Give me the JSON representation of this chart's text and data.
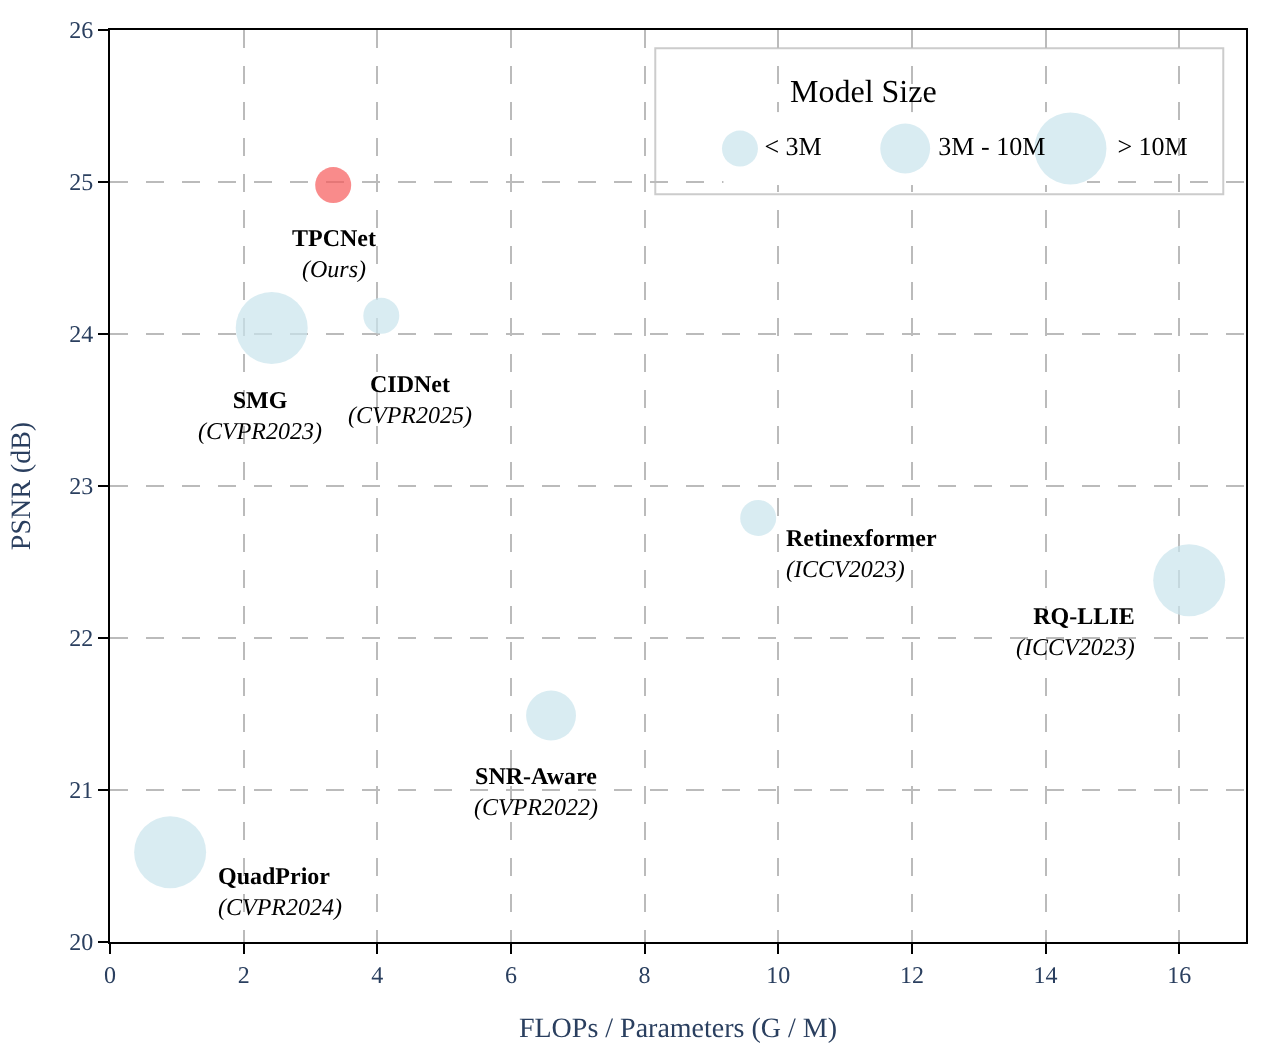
{
  "chart_data": {
    "type": "bubble",
    "xlabel": "FLOPs / Parameters (G / M)",
    "ylabel": "PSNR (dB)",
    "x": [
      3.34,
      2.42,
      4.06,
      9.7,
      16.15,
      6.6,
      0.9
    ],
    "values": [
      24.98,
      24.04,
      24.12,
      22.79,
      22.38,
      21.49,
      20.59
    ],
    "sizes": [
      0.25,
      1,
      0.25,
      0.25,
      1,
      0.48,
      1
    ],
    "colors": [
      "#f75a5a",
      "#c9e4ed",
      "#c9e4ed",
      "#c9e4ed",
      "#c9e4ed",
      "#c9e4ed",
      "#c9e4ed"
    ],
    "annotations": [
      {
        "text": "TPCNet\n(Ours)",
        "x": 3.34,
        "y": 24.98
      },
      {
        "text": "SMG\n(CVPR2023)",
        "x": 2.42,
        "y": 24.04
      },
      {
        "text": "CIDNet\n(CVPR2025)",
        "x": 4.06,
        "y": 24.12
      },
      {
        "text": "Retinexformer\n(ICCV2023)",
        "x": 9.7,
        "y": 22.79
      },
      {
        "text": "RQ-LLIE\n(ICCV2023)",
        "x": 16.15,
        "y": 22.38
      },
      {
        "text": "SNR-Aware\n(CVPR2022)",
        "x": 6.6,
        "y": 21.49
      },
      {
        "text": "QuadPrior\n(CVPR2024)",
        "x": 0.9,
        "y": 20.59
      }
    ],
    "legend_title": "Model Size",
    "size_legend": [
      {
        "value": 0.25,
        "label": "< 3M"
      },
      {
        "value": 0.48,
        "label": "3M - 10M"
      },
      {
        "value": 1,
        "label": "> 10M"
      }
    ],
    "xlim": [
      0,
      17
    ],
    "xticks": [
      0,
      2,
      4,
      6,
      8,
      10,
      12,
      14,
      16
    ],
    "ylim": [
      20,
      26
    ],
    "yticks": [
      20,
      21,
      22,
      23,
      24,
      25,
      26
    ],
    "grid": true
  }
}
